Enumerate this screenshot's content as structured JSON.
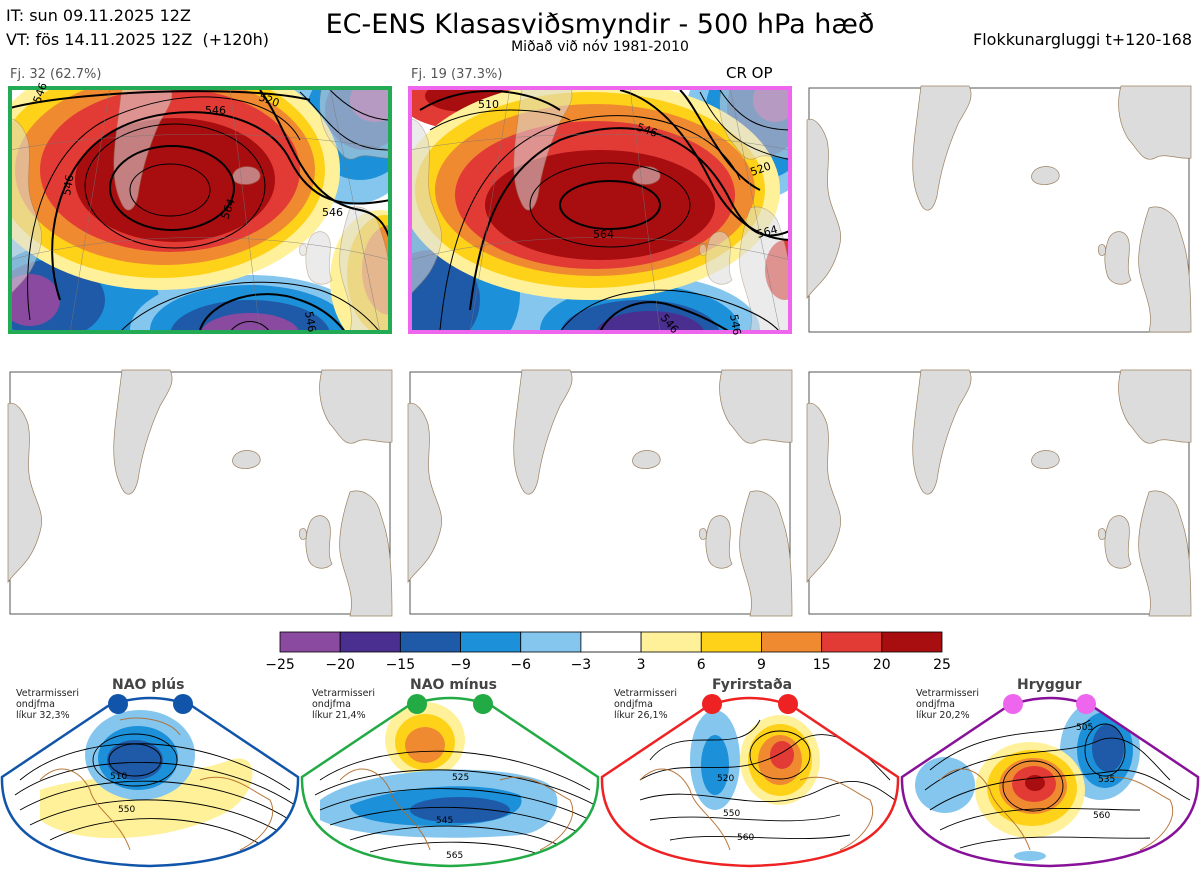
{
  "header": {
    "it_line": "IT: sun 09.11.2025 12Z",
    "vt_line": "VT: fös 14.11.2025 12Z",
    "vt_lead": "(+120h)",
    "title": "EC-ENS Klasasviðsmyndir - 500 hPa hæð",
    "subtitle": "Miðað við nóv 1981-2010",
    "window": "Flokkunargluggi t+120-168"
  },
  "panels": [
    {
      "label": "Fj. 32 (62.7%)",
      "border": "#22aa55",
      "marker": "",
      "contours": [
        "546",
        "520",
        "546",
        "564",
        "546",
        "546",
        "546"
      ]
    },
    {
      "label": "Fj. 19 (37.3%)",
      "border": "#ee66ee",
      "marker": "CR OP",
      "contours": [
        "510",
        "546",
        "520",
        "564",
        "564",
        "546",
        "546"
      ]
    }
  ],
  "colorbar": {
    "ticks": [
      "−25",
      "−20",
      "−15",
      "−9",
      "−6",
      "−3",
      "3",
      "6",
      "9",
      "15",
      "20",
      "25"
    ],
    "colors": [
      "#8a4aa0",
      "#4a2e90",
      "#1f5aa8",
      "#1c90d8",
      "#85c6ee",
      "#ffffff",
      "#fff199",
      "#ffd21a",
      "#f08a30",
      "#e23a35",
      "#a80d10"
    ]
  },
  "regimes": [
    {
      "name": "NAO plús",
      "info": [
        "Vetrarmisseri",
        "ondjfma",
        "líkur 32,3%"
      ],
      "color": "#1155aa",
      "contours": [
        "510",
        "550"
      ]
    },
    {
      "name": "NAO mínus",
      "info": [
        "Vetrarmisseri",
        "ondjfma",
        "líkur 21,4%"
      ],
      "color": "#22aa44",
      "contours": [
        "525",
        "545",
        "565"
      ]
    },
    {
      "name": "Fyrirstaða",
      "info": [
        "Vetrarmisseri",
        "ondjfma",
        "líkur 26,1%"
      ],
      "color": "#ee2222",
      "contours": [
        "520",
        "550",
        "560"
      ]
    },
    {
      "name": "Hryggur",
      "info": [
        "Vetrarmisseri",
        "ondjfma",
        "líkur 20,2%"
      ],
      "color": "#881199",
      "contours": [
        "505",
        "535",
        "560"
      ]
    }
  ]
}
